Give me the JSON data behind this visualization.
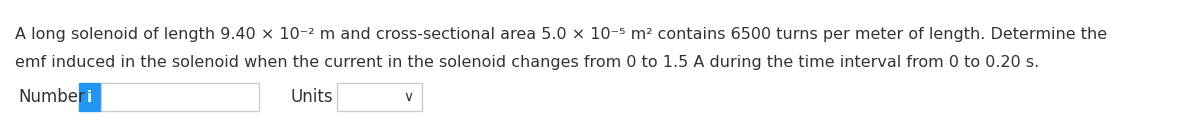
{
  "line1": "A long solenoid of length 9.40 × 10⁻² m and cross-sectional area 5.0 × 10⁻⁵ m² contains 6500 turns per meter of length. Determine the",
  "line2": "emf induced in the solenoid when the current in the solenoid changes from 0 to 1.5 A during the time interval from 0 to 0.20 s.",
  "label_number": "Number",
  "label_units": "Units",
  "info_char": "i",
  "bg_color": "#ffffff",
  "text_color": "#333333",
  "info_bg": "#2196F3",
  "info_text_color": "#ffffff",
  "box_border_color": "#cccccc",
  "text_fontsize": 11.5,
  "label_fontsize": 12
}
